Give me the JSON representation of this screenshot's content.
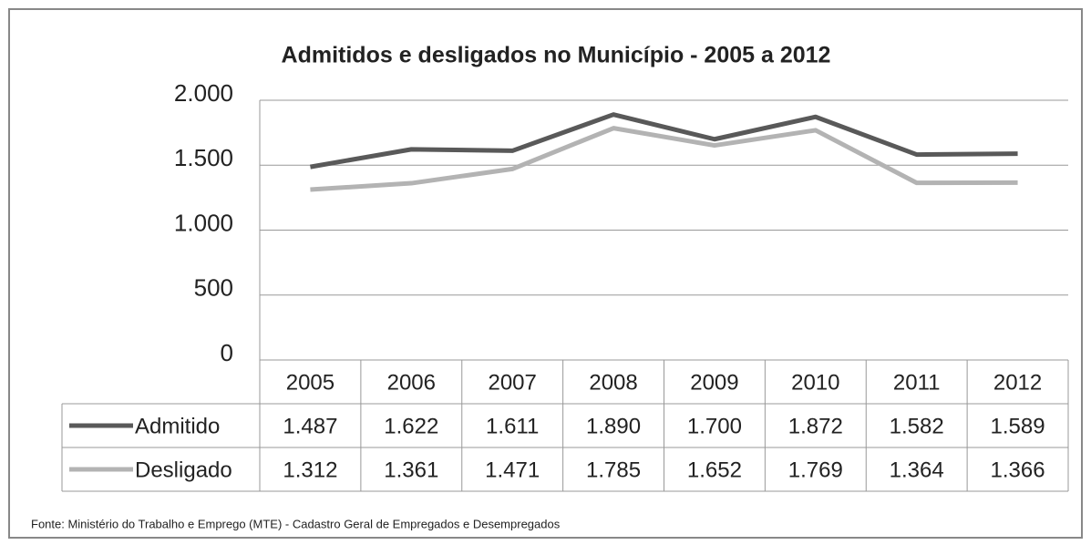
{
  "chart_data": {
    "type": "line",
    "title": "Admitidos e desligados no Município - 2005 a 2012",
    "categories": [
      "2005",
      "2006",
      "2007",
      "2008",
      "2009",
      "2010",
      "2011",
      "2012"
    ],
    "series": [
      {
        "name": "Admitido",
        "color": "#595959",
        "values": [
          1487,
          1622,
          1611,
          1890,
          1700,
          1872,
          1582,
          1589
        ],
        "value_labels": [
          "1.487",
          "1.622",
          "1.611",
          "1.890",
          "1.700",
          "1.872",
          "1.582",
          "1.589"
        ]
      },
      {
        "name": "Desligado",
        "color": "#b3b3b3",
        "values": [
          1312,
          1361,
          1471,
          1785,
          1652,
          1769,
          1364,
          1366
        ],
        "value_labels": [
          "1.312",
          "1.361",
          "1.471",
          "1.785",
          "1.652",
          "1.769",
          "1.364",
          "1.366"
        ]
      }
    ],
    "ylim": [
      0,
      2000
    ],
    "yticks": [
      0,
      500,
      {
        "value": 1000,
        "label": "1.000"
      },
      {
        "value": 1500,
        "label": "1.500"
      },
      {
        "value": 2000,
        "label": "2.000"
      }
    ],
    "grid": true,
    "source": "Fonte: Ministério do Trabalho e Emprego (MTE) - Cadastro Geral de Empregados e Desempregados"
  }
}
